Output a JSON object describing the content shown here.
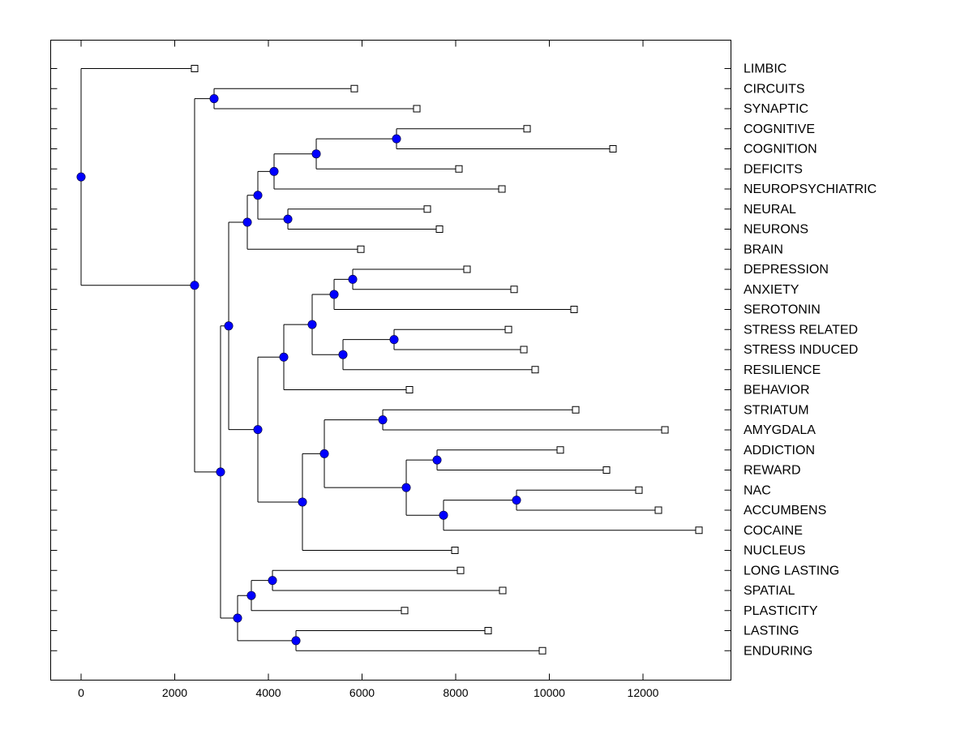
{
  "chart_data": {
    "type": "dendrogram",
    "title": "",
    "xlabel": "",
    "ylabel": "",
    "orientation": "horizontal",
    "xlim": [
      -650,
      13800
    ],
    "x_ticks": [
      0,
      2000,
      4000,
      6000,
      8000,
      10000,
      12000
    ],
    "x_tick_labels": [
      "0",
      "2000",
      "4000",
      "6000",
      "8000",
      "10000",
      "12000"
    ],
    "grid": false,
    "leaf_labels": [
      "LIMBIC",
      "CIRCUITS",
      "SYNAPTIC",
      "COGNITIVE",
      "COGNITION",
      "DEFICITS",
      "NEUROPSYCHIATRIC",
      "NEURAL",
      "NEURONS",
      "BRAIN",
      "DEPRESSION",
      "ANXIETY",
      "SEROTONIN",
      "STRESS RELATED",
      "STRESS INDUCED",
      "RESILIENCE",
      "BEHAVIOR",
      "STRIATUM",
      "AMYGDALA",
      "ADDICTION",
      "REWARD",
      "NAC",
      "ACCUMBENS",
      "COCAINE",
      "NUCLEUS",
      "LONG LASTING",
      "SPATIAL",
      "PLASTICITY",
      "LASTING",
      "ENDURING"
    ],
    "leaf_values": [
      2424,
      5835,
      7169,
      9524,
      11359,
      8069,
      8987,
      7394,
      7654,
      5974,
      8242,
      9247,
      10528,
      9126,
      9455,
      9697,
      7013,
      10563,
      12468,
      10234,
      11221,
      11913,
      12329,
      13195,
      7983,
      8104,
      9004,
      6909,
      8693,
      9853
    ],
    "tree": {
      "value": 0,
      "children": [
        {
          "leaf": 0
        },
        {
          "value": 2424,
          "children": [
            {
              "value": 2840,
              "children": [
                {
                  "leaf": 1
                },
                {
                  "leaf": 2
                }
              ]
            },
            {
              "value": 2978,
              "children": [
                {
                  "value": 3152,
                  "children": [
                    {
                      "value": 3550,
                      "children": [
                        {
                          "value": 3775,
                          "children": [
                            {
                              "value": 4121,
                              "children": [
                                {
                                  "value": 5022,
                                  "children": [
                                    {
                                      "value": 6736,
                                      "children": [
                                        {
                                          "leaf": 3
                                        },
                                        {
                                          "leaf": 4
                                        }
                                      ]
                                    },
                                    {
                                      "leaf": 5
                                    }
                                  ]
                                },
                                {
                                  "leaf": 6
                                }
                              ]
                            },
                            {
                              "value": 4416,
                              "children": [
                                {
                                  "leaf": 7
                                },
                                {
                                  "leaf": 8
                                }
                              ]
                            }
                          ]
                        },
                        {
                          "leaf": 9
                        }
                      ]
                    },
                    {
                      "value": 3775,
                      "children": [
                        {
                          "value": 4329,
                          "children": [
                            {
                              "value": 4935,
                              "children": [
                                {
                                  "value": 5403,
                                  "children": [
                                    {
                                      "value": 5801,
                                      "children": [
                                        {
                                          "leaf": 10
                                        },
                                        {
                                          "leaf": 11
                                        }
                                      ]
                                    },
                                    {
                                      "leaf": 12
                                    }
                                  ]
                                },
                                {
                                  "value": 5593,
                                  "children": [
                                    {
                                      "value": 6684,
                                      "children": [
                                        {
                                          "leaf": 13
                                        },
                                        {
                                          "leaf": 14
                                        }
                                      ]
                                    },
                                    {
                                      "leaf": 15
                                    }
                                  ]
                                }
                              ]
                            },
                            {
                              "leaf": 16
                            }
                          ]
                        },
                        {
                          "value": 4727,
                          "children": [
                            {
                              "value": 5195,
                              "children": [
                                {
                                  "value": 6442,
                                  "children": [
                                    {
                                      "leaf": 17
                                    },
                                    {
                                      "leaf": 18
                                    }
                                  ]
                                },
                                {
                                  "value": 6944,
                                  "children": [
                                    {
                                      "value": 7602,
                                      "children": [
                                        {
                                          "leaf": 19
                                        },
                                        {
                                          "leaf": 20
                                        }
                                      ]
                                    },
                                    {
                                      "value": 7740,
                                      "children": [
                                        {
                                          "value": 9299,
                                          "children": [
                                            {
                                              "leaf": 21
                                            },
                                            {
                                              "leaf": 22
                                            }
                                          ]
                                        },
                                        {
                                          "leaf": 23
                                        }
                                      ]
                                    }
                                  ]
                                }
                              ]
                            },
                            {
                              "leaf": 24
                            }
                          ]
                        }
                      ]
                    }
                  ]
                },
                {
                  "value": 3342,
                  "children": [
                    {
                      "value": 3636,
                      "children": [
                        {
                          "value": 4087,
                          "children": [
                            {
                              "leaf": 25
                            },
                            {
                              "leaf": 26
                            }
                          ]
                        },
                        {
                          "leaf": 27
                        }
                      ]
                    },
                    {
                      "value": 4589,
                      "children": [
                        {
                          "leaf": 28
                        },
                        {
                          "leaf": 29
                        }
                      ]
                    }
                  ]
                }
              ]
            }
          ]
        }
      ]
    },
    "colors": {
      "node": "#0000ff",
      "line": "#000000",
      "leaf_marker": "#ffffff"
    }
  }
}
